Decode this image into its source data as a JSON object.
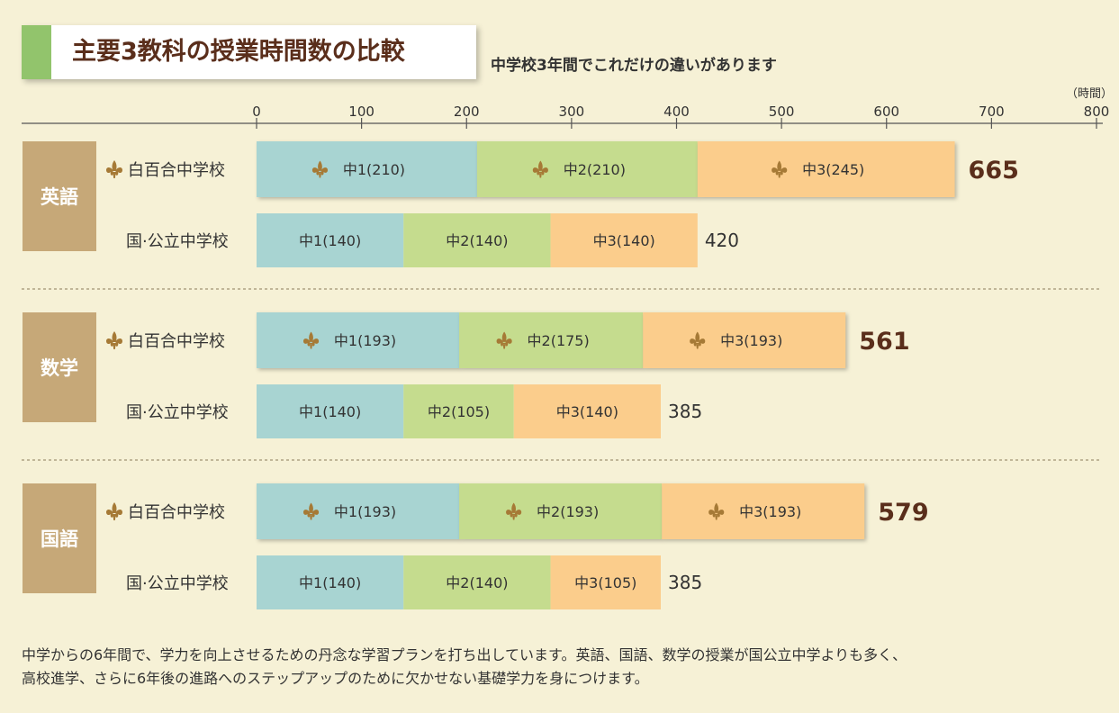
{
  "title": "主要3教科の授業時間数の比較",
  "subtitle": "中学校3年間でこれだけの違いがあります",
  "footer": {
    "line1": "中学からの6年間で、学力を向上させるための丹念な学習プランを打ち出しています。英語、国語、数学の授業が国公立中学よりも多く、",
    "line2": "高校進学、さらに6年後の進路へのステップアップのために欠かせない基礎学力を身につけます。"
  },
  "colors": {
    "grade1": "#a8d4d2",
    "grade2": "#c5dc8e",
    "grade3": "#fbcd8c",
    "subject_box": "#c6a878",
    "total_highlight": "#5a2e1b",
    "emblem": "#a67a36"
  },
  "chart_data": {
    "type": "bar",
    "orientation": "horizontal",
    "stacked": true,
    "axis_unit_label": "（時間）",
    "xlim": [
      0,
      800
    ],
    "ticks": [
      0,
      100,
      200,
      300,
      400,
      500,
      600,
      700,
      800
    ],
    "subjects": [
      {
        "name": "英語",
        "rows": [
          {
            "school": "白百合中学校",
            "emblem": true,
            "total": 665,
            "total_label": "665",
            "segments": [
              {
                "label": "中1(210)",
                "value": 210
              },
              {
                "label": "中2(210)",
                "value": 210
              },
              {
                "label": "中3(245)",
                "value": 245
              }
            ]
          },
          {
            "school": "国·公立中学校",
            "emblem": false,
            "total": 420,
            "total_label": "420",
            "segments": [
              {
                "label": "中1(140)",
                "value": 140
              },
              {
                "label": "中2(140)",
                "value": 140
              },
              {
                "label": "中3(140)",
                "value": 140
              }
            ]
          }
        ]
      },
      {
        "name": "数学",
        "rows": [
          {
            "school": "白百合中学校",
            "emblem": true,
            "total": 561,
            "total_label": "561",
            "segments": [
              {
                "label": "中1(193)",
                "value": 193
              },
              {
                "label": "中2(175)",
                "value": 175
              },
              {
                "label": "中3(193)",
                "value": 193
              }
            ]
          },
          {
            "school": "国·公立中学校",
            "emblem": false,
            "total": 385,
            "total_label": "385",
            "segments": [
              {
                "label": "中1(140)",
                "value": 140
              },
              {
                "label": "中2(105)",
                "value": 105
              },
              {
                "label": "中3(140)",
                "value": 140
              }
            ]
          }
        ]
      },
      {
        "name": "国語",
        "rows": [
          {
            "school": "白百合中学校",
            "emblem": true,
            "total": 579,
            "total_label": "579",
            "segments": [
              {
                "label": "中1(193)",
                "value": 193
              },
              {
                "label": "中2(193)",
                "value": 193
              },
              {
                "label": "中3(193)",
                "value": 193
              }
            ]
          },
          {
            "school": "国·公立中学校",
            "emblem": false,
            "total": 385,
            "total_label": "385",
            "segments": [
              {
                "label": "中1(140)",
                "value": 140
              },
              {
                "label": "中2(140)",
                "value": 140
              },
              {
                "label": "中3(105)",
                "value": 105
              }
            ]
          }
        ]
      }
    ]
  }
}
